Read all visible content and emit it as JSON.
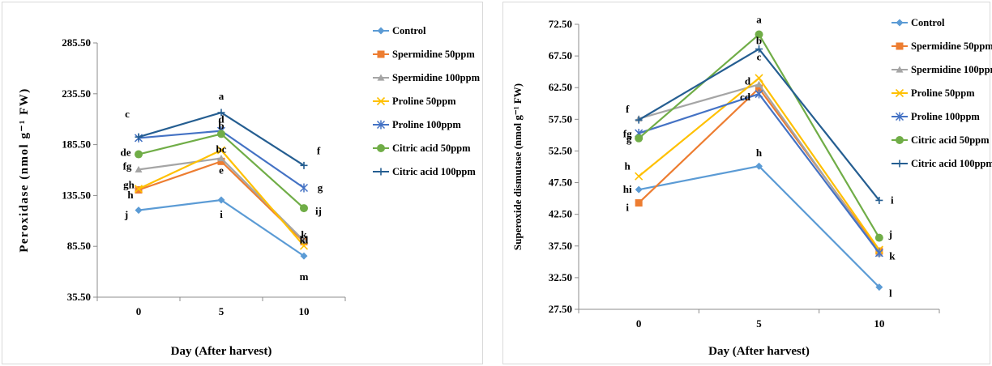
{
  "chart_data": [
    {
      "type": "line",
      "x": [
        "0",
        "5",
        "10"
      ],
      "xlabel": "Day (After harvest)",
      "ylabel": "Peroxidase (nmol g⁻¹ FW)",
      "ylim": [
        35.5,
        285.5
      ],
      "yticks": [
        "35.50",
        "85.50",
        "135.50",
        "185.50",
        "235.50",
        "285.50"
      ],
      "grid": false,
      "legend": "right",
      "series": [
        {
          "name": "Control",
          "color": "#5b9bd5",
          "marker": "diamond",
          "values": [
            121,
            131,
            76
          ],
          "labels": [
            "j",
            "i",
            "m"
          ]
        },
        {
          "name": "Spermidine 50ppm",
          "color": "#ed7d31",
          "marker": "square",
          "values": [
            141,
            169,
            90
          ],
          "labels": [
            "gh",
            "e",
            "kl"
          ]
        },
        {
          "name": "Spermidine 100ppm",
          "color": "#a5a5a5",
          "marker": "triangle",
          "values": [
            161,
            172,
            91
          ],
          "labels": [
            "fg",
            "",
            ""
          ]
        },
        {
          "name": "Proline 50ppm",
          "color": "#ffc000",
          "marker": "x",
          "values": [
            142,
            180,
            86
          ],
          "labels": [
            "h",
            "",
            ""
          ]
        },
        {
          "name": "Proline 100ppm",
          "color": "#4472c4",
          "marker": "star",
          "values": [
            192,
            199,
            143
          ],
          "labels": [
            "",
            "",
            "g"
          ]
        },
        {
          "name": "Citric acid 50ppm",
          "color": "#70ad47",
          "marker": "circle",
          "values": [
            176,
            196,
            123
          ],
          "labels": [
            "de",
            "d",
            "ij"
          ]
        },
        {
          "name": "Citric acid 100ppm",
          "color": "#255e91",
          "marker": "plus",
          "values": [
            193,
            217,
            165
          ],
          "labels": [
            "c",
            "a",
            "f"
          ]
        }
      ],
      "extra_labels": [
        {
          "text": "b",
          "x": "5",
          "y": 204
        },
        {
          "text": "bc",
          "x": "5",
          "y": 181
        },
        {
          "text": "k",
          "x": "10",
          "y": 97
        }
      ]
    },
    {
      "type": "line",
      "x": [
        "0",
        "5",
        "10"
      ],
      "xlabel": "Day (After harvest)",
      "ylabel": "Superoxide dismutase (nmol g⁻¹ FW)",
      "ylim": [
        27.5,
        72.5
      ],
      "yticks": [
        "27.50",
        "32.50",
        "37.50",
        "42.50",
        "47.50",
        "52.50",
        "57.50",
        "62.50",
        "67.50",
        "72.50"
      ],
      "grid": false,
      "legend": "right",
      "series": [
        {
          "name": "Control",
          "color": "#5b9bd5",
          "marker": "diamond",
          "values": [
            46.4,
            50.1,
            31.0
          ],
          "labels": [
            "hi",
            "h",
            "l"
          ]
        },
        {
          "name": "Spermidine 50ppm",
          "color": "#ed7d31",
          "marker": "square",
          "values": [
            44.3,
            62.4,
            36.7
          ],
          "labels": [
            "i",
            "cd",
            ""
          ]
        },
        {
          "name": "Spermidine 100ppm",
          "color": "#a5a5a5",
          "marker": "triangle",
          "values": [
            57.6,
            63.0,
            36.3
          ],
          "labels": [
            "",
            "d",
            ""
          ]
        },
        {
          "name": "Proline 50ppm",
          "color": "#ffc000",
          "marker": "x",
          "values": [
            48.5,
            64.0,
            36.9
          ],
          "labels": [
            "h",
            "c",
            ""
          ]
        },
        {
          "name": "Proline 100ppm",
          "color": "#4472c4",
          "marker": "star",
          "values": [
            55.3,
            61.5,
            36.4
          ],
          "labels": [
            "fg",
            "",
            "k"
          ]
        },
        {
          "name": "Citric acid 50ppm",
          "color": "#70ad47",
          "marker": "circle",
          "values": [
            54.5,
            70.9,
            38.8
          ],
          "labels": [
            "g",
            "a",
            "j"
          ]
        },
        {
          "name": "Citric acid 100ppm",
          "color": "#255e91",
          "marker": "plus",
          "values": [
            57.4,
            68.6,
            44.7
          ],
          "labels": [
            "f",
            "b",
            "i"
          ]
        }
      ],
      "extra_labels": []
    }
  ]
}
